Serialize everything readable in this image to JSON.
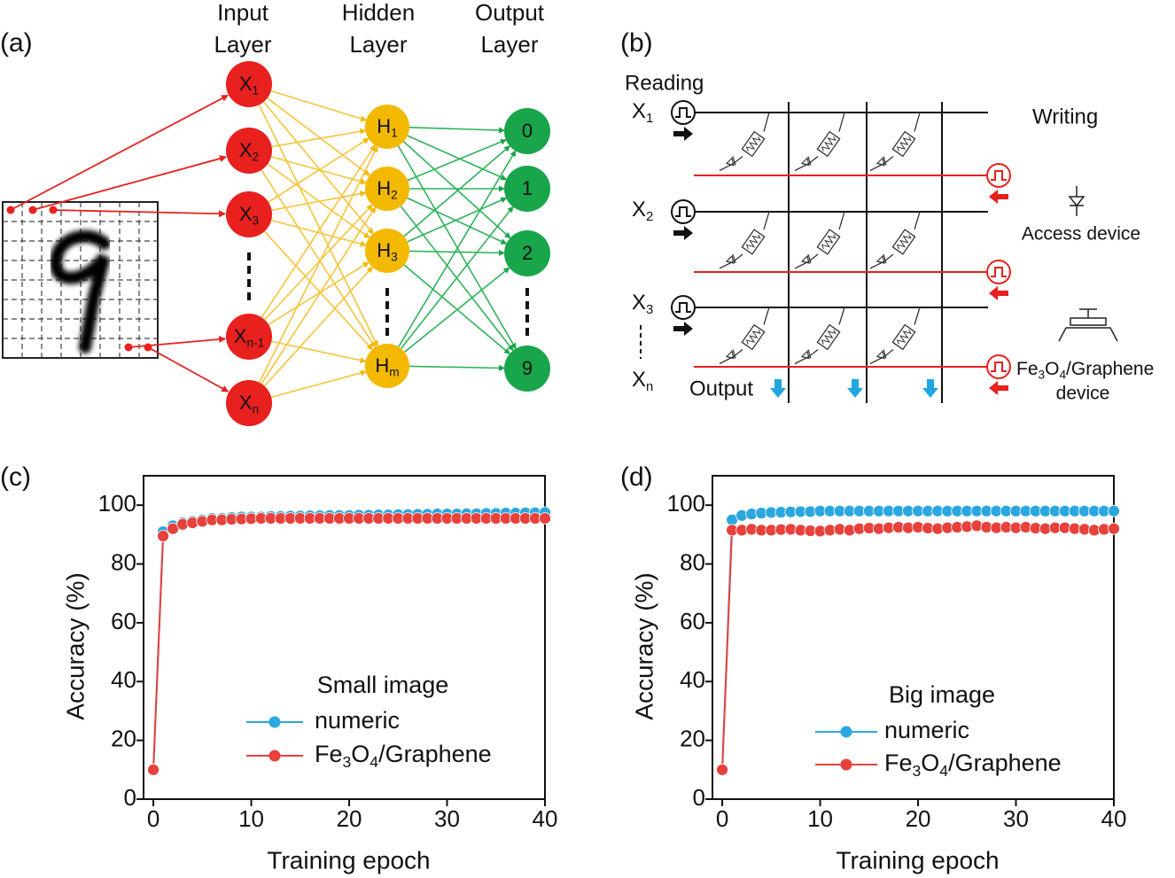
{
  "network": {
    "label": "(a)",
    "layers": [
      {
        "title": [
          "Input",
          "Layer"
        ],
        "nodes": [
          {
            "label": "X",
            "sub": "1"
          },
          {
            "label": "X",
            "sub": "2"
          },
          {
            "label": "X",
            "sub": "3"
          },
          {
            "label": "X",
            "sub": "n-1"
          },
          {
            "label": "X",
            "sub": "n"
          }
        ]
      },
      {
        "title": [
          "Hidden",
          "Layer"
        ],
        "nodes": [
          {
            "label": "H",
            "sub": "1"
          },
          {
            "label": "H",
            "sub": "2"
          },
          {
            "label": "H",
            "sub": "3"
          },
          {
            "label": "H",
            "sub": "m"
          }
        ]
      },
      {
        "title": [
          "Output",
          "Layer"
        ],
        "nodes": [
          {
            "label": "0"
          },
          {
            "label": "1"
          },
          {
            "label": "2"
          },
          {
            "label": "9"
          }
        ]
      }
    ]
  },
  "crossbar": {
    "label": "(b)",
    "reading": "Reading",
    "writing": "Writing",
    "rows": [
      {
        "label": "X",
        "sub": "1"
      },
      {
        "label": "X",
        "sub": "2"
      },
      {
        "label": "X",
        "sub": "3"
      },
      {
        "label": "X",
        "sub": "n"
      }
    ],
    "output": "Output",
    "access_device": "Access device",
    "fe_device": [
      "Fe3O4/Graphene",
      "device"
    ]
  },
  "chart_data": [
    {
      "type": "line",
      "label": "(c)",
      "legend_title": "Small image",
      "xlabel": "Training epoch",
      "ylabel": "Accuracy (%)",
      "x": [
        0,
        1,
        2,
        3,
        4,
        5,
        6,
        7,
        8,
        9,
        10,
        11,
        12,
        13,
        14,
        15,
        16,
        17,
        18,
        19,
        20,
        21,
        22,
        23,
        24,
        25,
        26,
        27,
        28,
        29,
        30,
        31,
        32,
        33,
        34,
        35,
        36,
        37,
        38,
        39,
        40
      ],
      "xlim": [
        -1,
        40
      ],
      "ylim": [
        0,
        110
      ],
      "xticks": [
        0,
        10,
        20,
        30,
        40
      ],
      "yticks": [
        0,
        20,
        40,
        60,
        80,
        100
      ],
      "series": [
        {
          "name": "numeric",
          "color": "#2aa7e1",
          "values": [
            10,
            91,
            93,
            94,
            94.5,
            95,
            95.5,
            95.5,
            95.8,
            96,
            96,
            96,
            96.2,
            96.2,
            96.3,
            96.3,
            96.4,
            96.4,
            96.5,
            96.5,
            96.5,
            96.6,
            96.6,
            96.7,
            96.7,
            96.8,
            96.8,
            96.9,
            96.9,
            97,
            97,
            97,
            97.1,
            97.1,
            97.2,
            97.2,
            97.3,
            97.3,
            97.4,
            97.4,
            97.5
          ]
        },
        {
          "name": "Fe3O4/Graphene",
          "color": "#e8413c",
          "values": [
            10,
            89.5,
            92,
            93.5,
            94,
            94.5,
            95,
            95,
            95.2,
            95.3,
            95.4,
            95.5,
            95.5,
            95.5,
            95.5,
            95.5,
            95.5,
            95.5,
            95.5,
            95.5,
            95.5,
            95.5,
            95.5,
            95.5,
            95.5,
            95.5,
            95.5,
            95.5,
            95.5,
            95.5,
            95.5,
            95.5,
            95.5,
            95.5,
            95.5,
            95.5,
            95.5,
            95.5,
            95.5,
            95.5,
            95.5
          ]
        }
      ]
    },
    {
      "type": "line",
      "label": "(d)",
      "legend_title": "Big image",
      "xlabel": "Training epoch",
      "ylabel": "Accuracy (%)",
      "x": [
        0,
        1,
        2,
        3,
        4,
        5,
        6,
        7,
        8,
        9,
        10,
        11,
        12,
        13,
        14,
        15,
        16,
        17,
        18,
        19,
        20,
        21,
        22,
        23,
        24,
        25,
        26,
        27,
        28,
        29,
        30,
        31,
        32,
        33,
        34,
        35,
        36,
        37,
        38,
        39,
        40
      ],
      "xlim": [
        -1,
        40
      ],
      "ylim": [
        0,
        110
      ],
      "xticks": [
        0,
        10,
        20,
        30,
        40
      ],
      "yticks": [
        0,
        20,
        40,
        60,
        80,
        100
      ],
      "series": [
        {
          "name": "numeric",
          "color": "#2aa7e1",
          "values": [
            10,
            95,
            96.5,
            97,
            97.3,
            97.5,
            97.6,
            97.7,
            97.8,
            97.8,
            98,
            98,
            98,
            98,
            98,
            98,
            98,
            98,
            98,
            98,
            98,
            98,
            98,
            98,
            98,
            98,
            98,
            98,
            98,
            98,
            98,
            98,
            98,
            98,
            98,
            98,
            98,
            98,
            98,
            98,
            98
          ]
        },
        {
          "name": "Fe3O4/Graphene",
          "color": "#e8413c",
          "values": [
            10,
            91.5,
            91.5,
            91.8,
            91.5,
            91.5,
            91.7,
            91.8,
            91.5,
            91.3,
            91.2,
            91.5,
            91.8,
            91.5,
            92,
            92.2,
            92,
            92.3,
            92.5,
            92.3,
            92.5,
            92.2,
            92,
            92.3,
            92.5,
            92.7,
            93,
            92.5,
            92.3,
            92.5,
            92.3,
            92.5,
            92.2,
            92,
            92.3,
            92.3,
            92,
            91.8,
            91.5,
            91.8,
            92
          ]
        }
      ]
    }
  ]
}
